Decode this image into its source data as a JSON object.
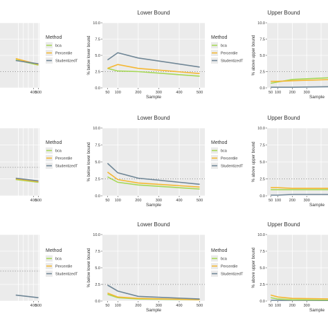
{
  "chart_data": [
    {
      "type": "line",
      "row": 0,
      "col": 0,
      "title": "",
      "xlabel": "",
      "ylabel": "",
      "xlim": [
        -400,
        520
      ],
      "ylim": [
        0,
        10
      ],
      "xticks": [
        400,
        500
      ],
      "yticks": [],
      "hline": 2.5,
      "series": [
        {
          "name": "bca",
          "x": [
            50,
            500
          ],
          "y": [
            4.3,
            3.5
          ]
        },
        {
          "name": "Percentile",
          "x": [
            50,
            500
          ],
          "y": [
            4.5,
            3.6
          ]
        },
        {
          "name": "StudentizedT",
          "x": [
            50,
            500
          ],
          "y": [
            4.2,
            3.7
          ]
        }
      ]
    },
    {
      "type": "line",
      "row": 0,
      "col": 1,
      "title": "Lower Bound",
      "xlabel": "Sample",
      "ylabel": "% below lower bound",
      "xlim": [
        25,
        525
      ],
      "ylim": [
        0,
        10
      ],
      "xticks": [
        50,
        100,
        200,
        300,
        400,
        500
      ],
      "yticks": [
        0.0,
        2.5,
        5.0,
        7.5,
        10.0
      ],
      "hline": 2.5,
      "series": [
        {
          "name": "bca",
          "x": [
            50,
            100,
            200,
            500
          ],
          "y": [
            3.0,
            2.6,
            2.5,
            1.8
          ]
        },
        {
          "name": "Percentile",
          "x": [
            50,
            100,
            200,
            500
          ],
          "y": [
            3.0,
            3.6,
            3.0,
            2.2
          ]
        },
        {
          "name": "StudentizedT",
          "x": [
            50,
            100,
            200,
            500
          ],
          "y": [
            4.3,
            5.4,
            4.6,
            3.2
          ]
        }
      ]
    },
    {
      "type": "line",
      "row": 0,
      "col": 2,
      "title": "Upper Bound",
      "xlabel": "Sample",
      "ylabel": "% above upper bound",
      "xlim": [
        25,
        525
      ],
      "ylim": [
        0,
        10
      ],
      "xticks": [
        50,
        100,
        200,
        300
      ],
      "yticks": [
        0.0,
        2.5,
        5.0,
        7.5,
        10.0
      ],
      "hline": 2.5,
      "series": [
        {
          "name": "bca",
          "x": [
            50,
            100,
            200,
            500
          ],
          "y": [
            0.7,
            0.9,
            1.3,
            1.6
          ]
        },
        {
          "name": "Percentile",
          "x": [
            50,
            100,
            200,
            500
          ],
          "y": [
            1.0,
            1.0,
            1.1,
            1.3
          ]
        },
        {
          "name": "StudentizedT",
          "x": [
            50,
            100,
            200,
            500
          ],
          "y": [
            0.1,
            0.1,
            0.1,
            0.2
          ]
        }
      ]
    },
    {
      "type": "line",
      "row": 1,
      "col": 0,
      "title": "",
      "xlabel": "",
      "ylabel": "",
      "xlim": [
        -400,
        520
      ],
      "ylim": [
        0,
        10
      ],
      "xticks": [
        400,
        500
      ],
      "yticks": [],
      "hline": 4.2,
      "series": [
        {
          "name": "bca",
          "x": [
            50,
            500
          ],
          "y": [
            2.4,
            2.0
          ]
        },
        {
          "name": "Percentile",
          "x": [
            50,
            500
          ],
          "y": [
            2.5,
            2.1
          ]
        },
        {
          "name": "StudentizedT",
          "x": [
            50,
            500
          ],
          "y": [
            2.6,
            2.2
          ]
        }
      ]
    },
    {
      "type": "line",
      "row": 1,
      "col": 1,
      "title": "Lower Bound",
      "xlabel": "Sample",
      "ylabel": "% below lower bound",
      "xlim": [
        25,
        525
      ],
      "ylim": [
        0,
        10
      ],
      "xticks": [
        50,
        100,
        200,
        300,
        400,
        500
      ],
      "yticks": [
        0.0,
        2.5,
        5.0,
        7.5,
        10.0
      ],
      "hline": 2.5,
      "series": [
        {
          "name": "bca",
          "x": [
            50,
            100,
            200,
            500
          ],
          "y": [
            2.8,
            2.0,
            1.6,
            1.0
          ]
        },
        {
          "name": "Percentile",
          "x": [
            50,
            100,
            200,
            500
          ],
          "y": [
            3.5,
            2.4,
            1.9,
            1.3
          ]
        },
        {
          "name": "StudentizedT",
          "x": [
            50,
            100,
            200,
            500
          ],
          "y": [
            4.8,
            3.4,
            2.6,
            1.7
          ]
        }
      ]
    },
    {
      "type": "line",
      "row": 1,
      "col": 2,
      "title": "Upper Bound",
      "xlabel": "Sample",
      "ylabel": "% above upper bound",
      "xlim": [
        25,
        525
      ],
      "ylim": [
        0,
        10
      ],
      "xticks": [
        50,
        100,
        200,
        300
      ],
      "yticks": [
        0.0,
        2.5,
        5.0,
        7.5,
        10.0
      ],
      "hline": 2.5,
      "series": [
        {
          "name": "bca",
          "x": [
            50,
            100,
            200,
            500
          ],
          "y": [
            0.9,
            0.9,
            0.9,
            0.9
          ]
        },
        {
          "name": "Percentile",
          "x": [
            50,
            100,
            200,
            500
          ],
          "y": [
            1.2,
            1.2,
            1.1,
            1.1
          ]
        },
        {
          "name": "StudentizedT",
          "x": [
            50,
            100,
            200,
            500
          ],
          "y": [
            0.1,
            0.1,
            0.2,
            0.2
          ]
        }
      ]
    },
    {
      "type": "line",
      "row": 2,
      "col": 0,
      "title": "",
      "xlabel": "",
      "ylabel": "",
      "xlim": [
        -400,
        520
      ],
      "ylim": [
        0,
        10
      ],
      "xticks": [
        400,
        500
      ],
      "yticks": [],
      "hline": 4.5,
      "series": [
        {
          "name": "StudentizedT",
          "x": [
            50,
            500
          ],
          "y": [
            0.9,
            0.5
          ]
        }
      ]
    },
    {
      "type": "line",
      "row": 2,
      "col": 1,
      "title": "Lower Bound",
      "xlabel": "Sample",
      "ylabel": "% below lower bound",
      "xlim": [
        25,
        525
      ],
      "ylim": [
        0,
        10
      ],
      "xticks": [
        50,
        100,
        200,
        300,
        400,
        500
      ],
      "yticks": [
        0.0,
        2.5,
        5.0,
        7.5,
        10.0
      ],
      "hline": 2.5,
      "series": [
        {
          "name": "bca",
          "x": [
            50,
            100,
            200,
            500
          ],
          "y": [
            1.0,
            0.5,
            0.3,
            0.2
          ]
        },
        {
          "name": "Percentile",
          "x": [
            50,
            100,
            200,
            500
          ],
          "y": [
            1.2,
            0.6,
            0.4,
            0.2
          ]
        },
        {
          "name": "StudentizedT",
          "x": [
            50,
            100,
            200,
            500
          ],
          "y": [
            2.4,
            1.5,
            0.7,
            0.3
          ]
        }
      ]
    },
    {
      "type": "line",
      "row": 2,
      "col": 2,
      "title": "Upper Bound",
      "xlabel": "Sample",
      "ylabel": "% above upper bound",
      "xlim": [
        25,
        525
      ],
      "ylim": [
        0,
        10
      ],
      "xticks": [
        50,
        100,
        200,
        300
      ],
      "yticks": [
        0.0,
        2.5,
        5.0,
        7.5,
        10.0
      ],
      "hline": 2.5,
      "series": [
        {
          "name": "bca",
          "x": [
            50,
            100,
            200,
            500
          ],
          "y": [
            0.5,
            0.3,
            0.2,
            0.1
          ]
        },
        {
          "name": "Percentile",
          "x": [
            50,
            100,
            200,
            500
          ],
          "y": [
            0.9,
            0.6,
            0.4,
            0.3
          ]
        },
        {
          "name": "StudentizedT",
          "x": [
            50,
            100,
            200,
            500
          ],
          "y": [
            0.1,
            0.1,
            0.0,
            0.0
          ]
        }
      ]
    }
  ],
  "legends": [
    {
      "row": 0,
      "col": 0,
      "title": "Method",
      "items": [
        "bca",
        "Percentile",
        "StudentizedT"
      ]
    },
    {
      "row": 0,
      "col": 1,
      "title": "Method",
      "items": [
        "bca",
        "Percentile",
        "StudentizedT"
      ]
    },
    {
      "row": 1,
      "col": 0,
      "title": "Method",
      "items": [
        "bca",
        "Percentile",
        "StudentizedT"
      ]
    },
    {
      "row": 1,
      "col": 1,
      "title": "Method",
      "items": [
        "bca",
        "Percentile",
        "StudentizedT"
      ]
    },
    {
      "row": 2,
      "col": 0,
      "title": "Method",
      "items": [
        "bca",
        "Percentile",
        "StudentizedT"
      ]
    },
    {
      "row": 2,
      "col": 1,
      "title": "Method",
      "items": [
        "bca",
        "Percentile",
        "StudentizedT"
      ]
    }
  ],
  "colors": {
    "bca": "#a6d854",
    "Percentile": "#f5b731",
    "StudentizedT": "#6f8696",
    "panel_bg": "#ebebeb",
    "grid": "#ffffff",
    "hline": "#9e9e9e",
    "text": "#333333"
  }
}
